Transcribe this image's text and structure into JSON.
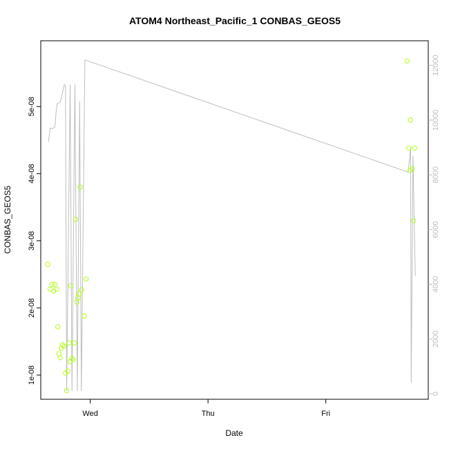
{
  "chart_data": {
    "type": "scatter",
    "title": "ATOM4 Northeast_Pacific_1 CONBAS_GEOS5",
    "xlabel": "Date",
    "ylabel": "CONBAS_GEOS5",
    "x_ticks": [
      {
        "label": "Wed",
        "value": 1.0
      },
      {
        "label": "Thu",
        "value": 2.0
      },
      {
        "label": "Fri",
        "value": 3.0
      }
    ],
    "xlim": [
      0.58,
      3.87
    ],
    "y_left": {
      "lim": [
        6.4e-09,
        5.98e-08
      ],
      "ticks": [
        {
          "label": "1e-08",
          "value": 1e-08
        },
        {
          "label": "2e-08",
          "value": 2e-08
        },
        {
          "label": "3e-08",
          "value": 3e-08
        },
        {
          "label": "4e-08",
          "value": 4e-08
        },
        {
          "label": "5e-08",
          "value": 5e-08
        }
      ]
    },
    "y_right": {
      "lim": [
        -200,
        12900
      ],
      "ticks": [
        {
          "label": "0",
          "value": 0
        },
        {
          "label": "2000",
          "value": 2000
        },
        {
          "label": "4000",
          "value": 4000
        },
        {
          "label": "6000",
          "value": 6000
        },
        {
          "label": "8000",
          "value": 8000
        },
        {
          "label": "10000",
          "value": 10000
        },
        {
          "label": "12000",
          "value": 12000
        }
      ]
    },
    "series": [
      {
        "axis": "left",
        "marker": "circle-open",
        "color": "#b3ff1a",
        "points": [
          [
            0.64,
            2.65e-08
          ],
          [
            0.66,
            2.28e-08
          ],
          [
            0.675,
            2.35e-08
          ],
          [
            0.69,
            2.25e-08
          ],
          [
            0.7,
            2.35e-08
          ],
          [
            0.715,
            2.28e-08
          ],
          [
            0.725,
            1.72e-08
          ],
          [
            0.735,
            1.32e-08
          ],
          [
            0.745,
            1.26e-08
          ],
          [
            0.755,
            1.4e-08
          ],
          [
            0.765,
            1.45e-08
          ],
          [
            0.775,
            1.43e-08
          ],
          [
            0.79,
            1.03e-08
          ],
          [
            0.8,
            7.7e-09
          ],
          [
            0.81,
            1.06e-08
          ],
          [
            0.82,
            1.48e-08
          ],
          [
            0.83,
            1.2e-08
          ],
          [
            0.835,
            2.33e-08
          ],
          [
            0.845,
            1.25e-08
          ],
          [
            0.855,
            1.23e-08
          ],
          [
            0.865,
            1.48e-08
          ],
          [
            0.875,
            3.32e-08
          ],
          [
            0.885,
            2.09e-08
          ],
          [
            0.895,
            2.15e-08
          ],
          [
            0.905,
            2.21e-08
          ],
          [
            0.915,
            3.8e-08
          ],
          [
            0.925,
            2.27e-08
          ],
          [
            0.95,
            1.88e-08
          ],
          [
            0.965,
            2.43e-08
          ],
          [
            3.69,
            5.68e-08
          ],
          [
            3.705,
            4.38e-08
          ],
          [
            3.72,
            4.8e-08
          ],
          [
            3.715,
            4.05e-08
          ],
          [
            3.735,
            4.07e-08
          ],
          [
            3.745,
            3.3e-08
          ],
          [
            3.755,
            4.38e-08
          ]
        ]
      },
      {
        "axis": "right",
        "marker": "line",
        "color": "#bdbdbd",
        "points": [
          [
            0.645,
            9200
          ],
          [
            0.66,
            9700
          ],
          [
            0.685,
            9700
          ],
          [
            0.7,
            9750
          ],
          [
            0.71,
            10300
          ],
          [
            0.72,
            10600
          ],
          [
            0.745,
            10650
          ],
          [
            0.765,
            11000
          ],
          [
            0.78,
            11300
          ],
          [
            0.79,
            11250
          ],
          [
            0.8,
            100
          ],
          [
            0.83,
            11300
          ],
          [
            0.845,
            100
          ],
          [
            0.87,
            11300
          ],
          [
            0.89,
            100
          ],
          [
            0.91,
            10700
          ],
          [
            0.925,
            100
          ],
          [
            0.955,
            12200
          ],
          [
            3.7,
            8100
          ],
          [
            3.72,
            9000
          ],
          [
            3.725,
            400
          ],
          [
            3.74,
            8700
          ],
          [
            3.76,
            4300
          ]
        ]
      }
    ],
    "grid": false,
    "legend": "none"
  }
}
